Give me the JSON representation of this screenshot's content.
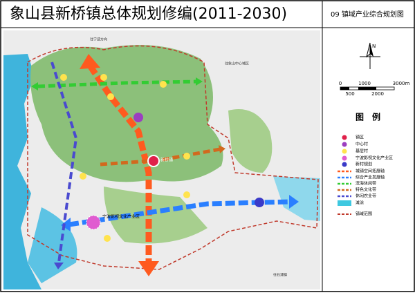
{
  "header": {
    "title": "象山县新桥镇总体规划修编(2011-2030)",
    "sheet": "09 镇域产业综合规划图"
  },
  "compass": {
    "north": "N"
  },
  "scale_bar": {
    "labels_top": [
      "0",
      "1000",
      "3000m"
    ],
    "labels_bottom": [
      "500",
      "2000"
    ]
  },
  "legend": {
    "title": "图　例",
    "items": [
      "镇区",
      "中心村",
      "基层村",
      "宁波影视文化产业区",
      "新村规划",
      "城镇空间拓展轴",
      "综合产业发展轴",
      "滨海休闲带",
      "特色文化带",
      "休闲农业带",
      "滩涂",
      "镇域范围"
    ]
  },
  "map_labels": [
    "新桥镇",
    "宁波影视文化产业区",
    "往宁波方向",
    "往象山中心城区",
    "往石浦镇"
  ]
}
